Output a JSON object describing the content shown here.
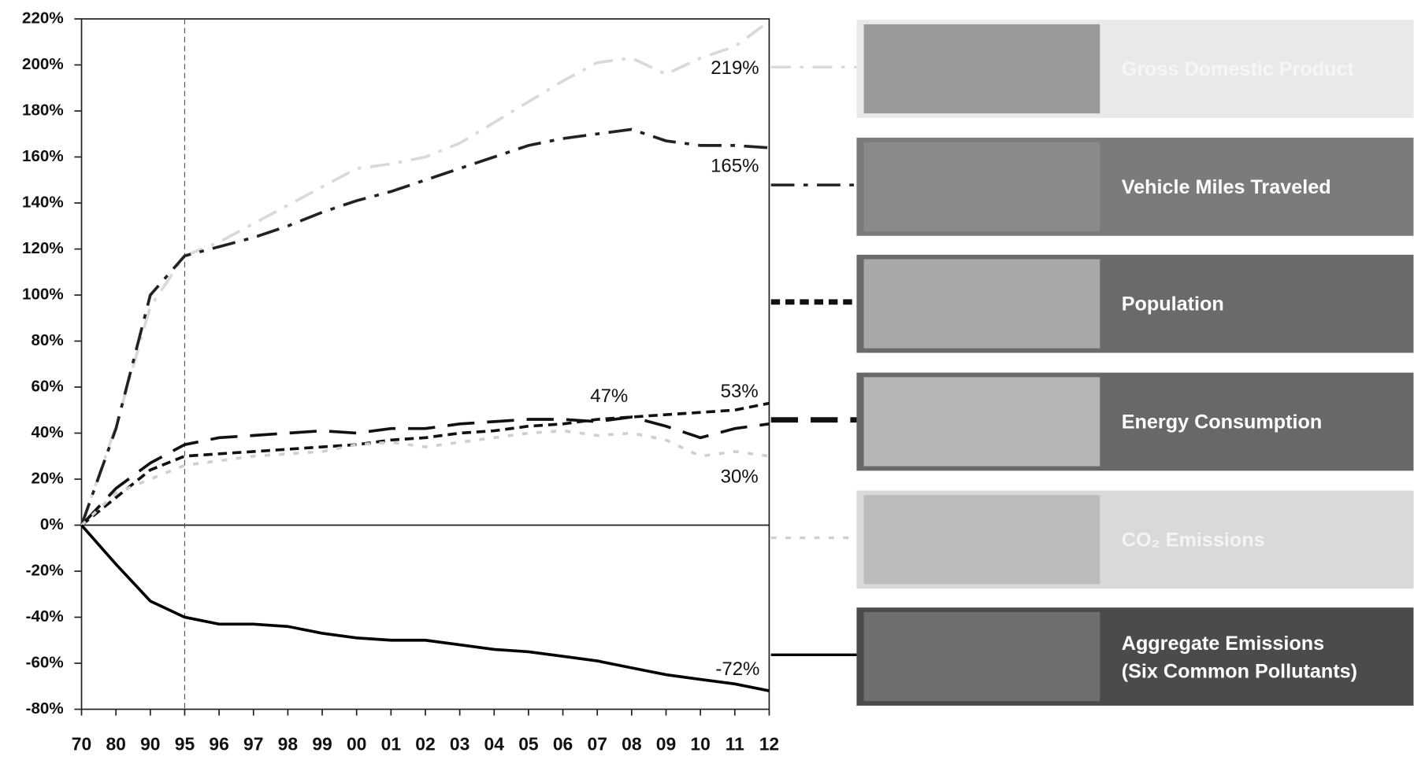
{
  "chart_data": {
    "type": "line",
    "categories": [
      "70",
      "80",
      "90",
      "95",
      "96",
      "97",
      "98",
      "99",
      "00",
      "01",
      "02",
      "03",
      "04",
      "05",
      "06",
      "07",
      "08",
      "09",
      "10",
      "11",
      "12"
    ],
    "ylim": [
      -80,
      220
    ],
    "yticks": [
      {
        "value": -80,
        "label": "-80%"
      },
      {
        "value": -60,
        "label": "-60%"
      },
      {
        "value": -40,
        "label": "-40%"
      },
      {
        "value": -20,
        "label": "-20%"
      },
      {
        "value": 0,
        "label": "0%"
      },
      {
        "value": 20,
        "label": "20%"
      },
      {
        "value": 40,
        "label": "40%"
      },
      {
        "value": 60,
        "label": "60%"
      },
      {
        "value": 80,
        "label": "80%"
      },
      {
        "value": 100,
        "label": "100%"
      },
      {
        "value": 120,
        "label": "120%"
      },
      {
        "value": 140,
        "label": "140%"
      },
      {
        "value": 160,
        "label": "160%"
      },
      {
        "value": 180,
        "label": "180%"
      },
      {
        "value": 200,
        "label": "200%"
      },
      {
        "value": 220,
        "label": "220%"
      }
    ],
    "series": [
      {
        "name": "Gross Domestic Product",
        "color": "#d9d9d9",
        "values": [
          0,
          43,
          95,
          117,
          123,
          131,
          139,
          147,
          155,
          157,
          160,
          166,
          175,
          184,
          193,
          201,
          203,
          196,
          203,
          208,
          219
        ],
        "value_labels": [
          null,
          null,
          null,
          null,
          null,
          null,
          null,
          null,
          null,
          null,
          null,
          null,
          null,
          null,
          null,
          null,
          null,
          null,
          null,
          null,
          "219%"
        ]
      },
      {
        "name": "Vehicle Miles Traveled",
        "color": "#222222",
        "values": [
          0,
          42,
          100,
          117,
          121,
          125,
          130,
          136,
          141,
          145,
          150,
          155,
          160,
          165,
          168,
          170,
          172,
          167,
          165,
          165,
          164
        ],
        "value_labels": [
          null,
          null,
          null,
          null,
          null,
          null,
          null,
          null,
          null,
          null,
          null,
          null,
          null,
          null,
          null,
          null,
          null,
          null,
          null,
          "165%",
          null
        ]
      },
      {
        "name": "Population",
        "color": "#111111",
        "values": [
          0,
          12,
          24,
          30,
          31,
          32,
          33,
          34,
          35,
          37,
          38,
          40,
          41,
          43,
          44,
          46,
          47,
          48,
          49,
          50,
          53
        ],
        "value_labels": [
          null,
          null,
          null,
          null,
          null,
          null,
          null,
          null,
          null,
          null,
          null,
          null,
          null,
          null,
          null,
          null,
          null,
          null,
          null,
          null,
          "53%"
        ]
      },
      {
        "name": "Energy Consumption",
        "color": "#111111",
        "values": [
          0,
          16,
          27,
          35,
          38,
          39,
          40,
          41,
          40,
          42,
          42,
          44,
          45,
          46,
          46,
          45,
          47,
          43,
          38,
          42,
          44
        ],
        "value_labels": [
          null,
          null,
          null,
          null,
          null,
          null,
          null,
          null,
          null,
          null,
          null,
          null,
          null,
          null,
          null,
          null,
          "47%",
          null,
          null,
          null,
          null
        ]
      },
      {
        "name": "CO₂ Emissions",
        "color": "#cfcfcf",
        "values": [
          0,
          14,
          20,
          26,
          28,
          30,
          31,
          32,
          35,
          36,
          34,
          36,
          38,
          40,
          41,
          39,
          40,
          37,
          30,
          32,
          30
        ],
        "value_labels": [
          null,
          null,
          null,
          null,
          null,
          null,
          null,
          null,
          null,
          null,
          null,
          null,
          null,
          null,
          null,
          null,
          null,
          null,
          null,
          null,
          "30%"
        ]
      },
      {
        "name": "Aggregate Emissions\n(Six Common Pollutants)",
        "color": "#000000",
        "values": [
          0,
          -17,
          -33,
          -40,
          -43,
          -43,
          -44,
          -47,
          -49,
          -50,
          -50,
          -52,
          -54,
          -55,
          -57,
          -59,
          -62,
          -65,
          -67,
          -69,
          -72
        ],
        "value_labels": [
          null,
          null,
          null,
          null,
          null,
          null,
          null,
          null,
          null,
          null,
          null,
          null,
          null,
          null,
          null,
          null,
          null,
          null,
          null,
          null,
          "-72%"
        ]
      }
    ]
  }
}
